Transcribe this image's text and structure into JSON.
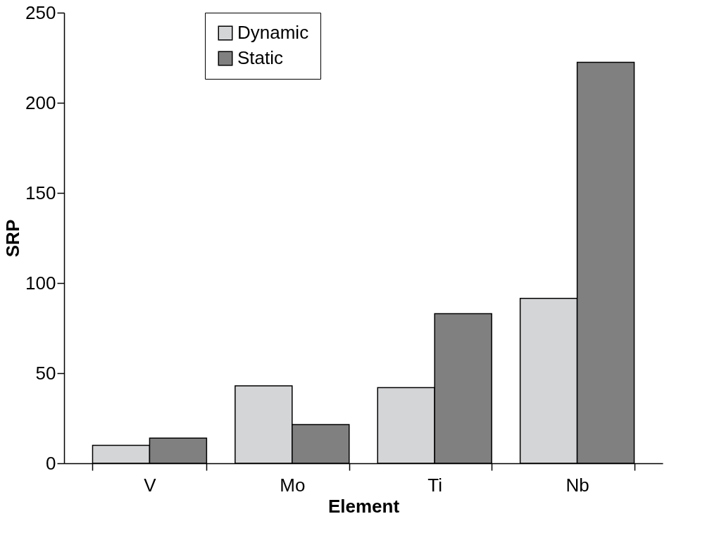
{
  "chart_data": {
    "type": "bar",
    "xlabel": "Element",
    "ylabel": "SRP",
    "categories": [
      "V",
      "Mo",
      "Ti",
      "Nb"
    ],
    "series": [
      {
        "name": "Dynamic",
        "color": "#d4d5d7",
        "values": [
          10,
          43,
          42,
          91.5
        ]
      },
      {
        "name": "Static",
        "color": "#808080",
        "values": [
          14,
          21.5,
          83,
          222.5
        ]
      }
    ],
    "ylim": [
      0,
      250
    ],
    "yticks": [
      0,
      50,
      100,
      150,
      200,
      250
    ],
    "grid": false,
    "legend": "top left"
  }
}
